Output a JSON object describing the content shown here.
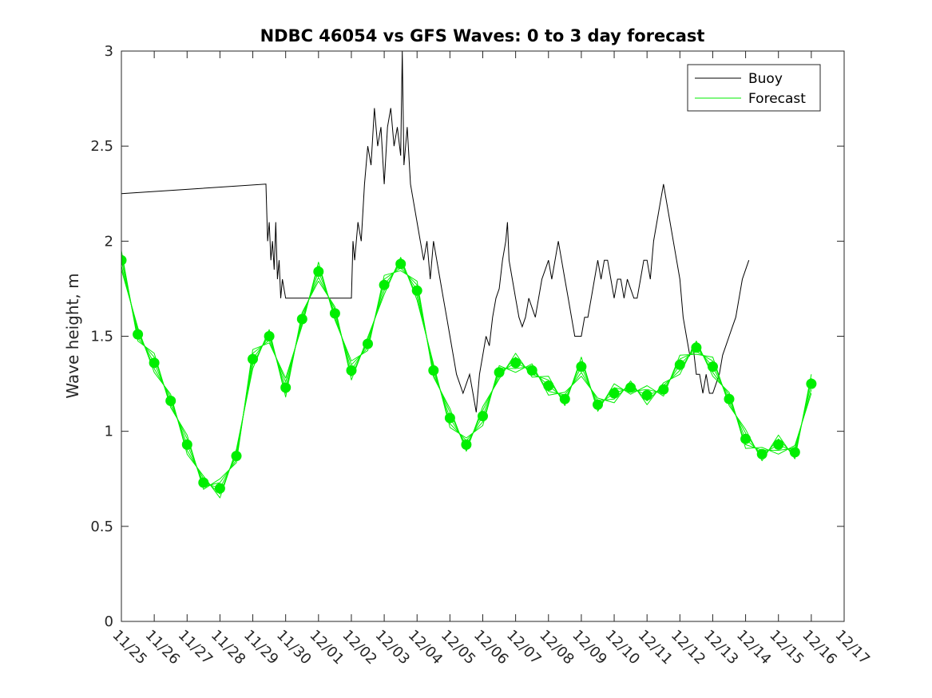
{
  "chart_data": {
    "type": "line",
    "title": "NDBC 46054 vs GFS Waves: 0 to 3 day forecast",
    "xlabel": "",
    "ylabel": "Wave height, m",
    "x_unit": "days since 11/25",
    "xlim": [
      0,
      22
    ],
    "ylim": [
      0,
      3
    ],
    "yticks": [
      0,
      0.5,
      1,
      1.5,
      2,
      2.5,
      3
    ],
    "ytick_labels": [
      "0",
      "0.5",
      "1",
      "1.5",
      "2",
      "2.5",
      "3"
    ],
    "xticks": [
      0,
      1,
      2,
      3,
      4,
      5,
      6,
      7,
      8,
      9,
      10,
      11,
      12,
      13,
      14,
      15,
      16,
      17,
      18,
      19,
      20,
      21,
      22
    ],
    "xtick_labels": [
      "11/25",
      "11/26",
      "11/27",
      "11/28",
      "11/29",
      "11/30",
      "12/01",
      "12/02",
      "12/03",
      "12/04",
      "12/05",
      "12/06",
      "12/07",
      "12/08",
      "12/09",
      "12/10",
      "12/11",
      "12/12",
      "12/13",
      "12/14",
      "12/15",
      "12/16",
      "12/17"
    ],
    "legend": {
      "placement": "top-right",
      "entries": [
        {
          "label": "Buoy",
          "color": "#000000"
        },
        {
          "label": "Forecast",
          "color": "#00ee00"
        }
      ]
    },
    "series": [
      {
        "name": "Buoy",
        "color": "#000000",
        "points": [
          [
            0,
            2.25
          ],
          [
            4.4,
            2.3
          ],
          [
            4.45,
            2.0
          ],
          [
            4.5,
            2.1
          ],
          [
            4.55,
            1.9
          ],
          [
            4.6,
            2.0
          ],
          [
            4.65,
            1.85
          ],
          [
            4.7,
            2.1
          ],
          [
            4.75,
            1.8
          ],
          [
            4.8,
            1.9
          ],
          [
            4.85,
            1.7
          ],
          [
            4.9,
            1.8
          ],
          [
            4.95,
            1.75
          ],
          [
            5.0,
            1.7
          ],
          [
            7.0,
            1.7
          ],
          [
            7.05,
            2.0
          ],
          [
            7.1,
            1.9
          ],
          [
            7.2,
            2.1
          ],
          [
            7.3,
            2.0
          ],
          [
            7.4,
            2.3
          ],
          [
            7.5,
            2.5
          ],
          [
            7.6,
            2.4
          ],
          [
            7.7,
            2.7
          ],
          [
            7.8,
            2.5
          ],
          [
            7.9,
            2.6
          ],
          [
            8.0,
            2.3
          ],
          [
            8.1,
            2.6
          ],
          [
            8.2,
            2.7
          ],
          [
            8.3,
            2.5
          ],
          [
            8.4,
            2.6
          ],
          [
            8.5,
            2.45
          ],
          [
            8.55,
            3.0
          ],
          [
            8.6,
            2.4
          ],
          [
            8.7,
            2.6
          ],
          [
            8.8,
            2.3
          ],
          [
            8.9,
            2.2
          ],
          [
            9.0,
            2.1
          ],
          [
            9.1,
            2.0
          ],
          [
            9.2,
            1.9
          ],
          [
            9.3,
            2.0
          ],
          [
            9.4,
            1.8
          ],
          [
            9.5,
            2.0
          ],
          [
            9.6,
            1.9
          ],
          [
            9.7,
            1.8
          ],
          [
            9.8,
            1.7
          ],
          [
            9.9,
            1.6
          ],
          [
            10.0,
            1.5
          ],
          [
            10.1,
            1.4
          ],
          [
            10.2,
            1.3
          ],
          [
            10.3,
            1.25
          ],
          [
            10.4,
            1.2
          ],
          [
            10.5,
            1.25
          ],
          [
            10.6,
            1.3
          ],
          [
            10.7,
            1.2
          ],
          [
            10.8,
            1.1
          ],
          [
            10.9,
            1.3
          ],
          [
            11.0,
            1.4
          ],
          [
            11.1,
            1.5
          ],
          [
            11.2,
            1.45
          ],
          [
            11.3,
            1.6
          ],
          [
            11.4,
            1.7
          ],
          [
            11.5,
            1.75
          ],
          [
            11.6,
            1.9
          ],
          [
            11.7,
            2.0
          ],
          [
            11.75,
            2.1
          ],
          [
            11.8,
            1.9
          ],
          [
            11.9,
            1.8
          ],
          [
            12.0,
            1.7
          ],
          [
            12.1,
            1.6
          ],
          [
            12.2,
            1.55
          ],
          [
            12.3,
            1.6
          ],
          [
            12.4,
            1.7
          ],
          [
            12.5,
            1.65
          ],
          [
            12.6,
            1.6
          ],
          [
            12.7,
            1.7
          ],
          [
            12.8,
            1.8
          ],
          [
            12.9,
            1.85
          ],
          [
            13.0,
            1.9
          ],
          [
            13.1,
            1.8
          ],
          [
            13.2,
            1.9
          ],
          [
            13.3,
            2.0
          ],
          [
            13.4,
            1.9
          ],
          [
            13.5,
            1.8
          ],
          [
            13.6,
            1.7
          ],
          [
            13.7,
            1.6
          ],
          [
            13.8,
            1.5
          ],
          [
            13.9,
            1.5
          ],
          [
            14.0,
            1.5
          ],
          [
            14.1,
            1.6
          ],
          [
            14.2,
            1.6
          ],
          [
            14.3,
            1.7
          ],
          [
            14.4,
            1.8
          ],
          [
            14.5,
            1.9
          ],
          [
            14.6,
            1.8
          ],
          [
            14.7,
            1.9
          ],
          [
            14.8,
            1.9
          ],
          [
            14.9,
            1.8
          ],
          [
            15.0,
            1.7
          ],
          [
            15.1,
            1.8
          ],
          [
            15.2,
            1.8
          ],
          [
            15.3,
            1.7
          ],
          [
            15.4,
            1.8
          ],
          [
            15.5,
            1.75
          ],
          [
            15.6,
            1.7
          ],
          [
            15.7,
            1.7
          ],
          [
            15.8,
            1.8
          ],
          [
            15.9,
            1.9
          ],
          [
            16.0,
            1.9
          ],
          [
            16.1,
            1.8
          ],
          [
            16.2,
            2.0
          ],
          [
            16.3,
            2.1
          ],
          [
            16.4,
            2.2
          ],
          [
            16.5,
            2.3
          ],
          [
            16.6,
            2.2
          ],
          [
            16.7,
            2.1
          ],
          [
            16.8,
            2.0
          ],
          [
            16.9,
            1.9
          ],
          [
            17.0,
            1.8
          ],
          [
            17.1,
            1.6
          ],
          [
            17.2,
            1.5
          ],
          [
            17.3,
            1.4
          ],
          [
            17.4,
            1.45
          ],
          [
            17.5,
            1.3
          ],
          [
            17.6,
            1.3
          ],
          [
            17.7,
            1.2
          ],
          [
            17.8,
            1.3
          ],
          [
            17.9,
            1.2
          ],
          [
            18.0,
            1.2
          ],
          [
            18.1,
            1.25
          ],
          [
            18.2,
            1.3
          ],
          [
            18.3,
            1.4
          ],
          [
            18.4,
            1.45
          ],
          [
            18.5,
            1.5
          ],
          [
            18.6,
            1.55
          ],
          [
            18.7,
            1.6
          ],
          [
            18.8,
            1.7
          ],
          [
            18.9,
            1.8
          ],
          [
            19.0,
            1.85
          ],
          [
            19.1,
            1.9
          ]
        ]
      },
      {
        "name": "Forecast",
        "color": "#00ee00",
        "markers": [
          [
            0,
            1.9
          ],
          [
            0.5,
            1.51
          ],
          [
            1,
            1.36
          ],
          [
            1.5,
            1.16
          ],
          [
            2,
            0.93
          ],
          [
            2.5,
            0.73
          ],
          [
            3,
            0.7
          ],
          [
            3.5,
            0.87
          ],
          [
            4,
            1.38
          ],
          [
            4.5,
            1.5
          ],
          [
            5,
            1.23
          ],
          [
            5.5,
            1.59
          ],
          [
            6,
            1.84
          ],
          [
            6.5,
            1.62
          ],
          [
            7,
            1.32
          ],
          [
            7.5,
            1.46
          ],
          [
            8,
            1.77
          ],
          [
            8.5,
            1.88
          ],
          [
            9,
            1.74
          ],
          [
            9.5,
            1.32
          ],
          [
            10,
            1.07
          ],
          [
            10.5,
            0.93
          ],
          [
            11,
            1.08
          ],
          [
            11.5,
            1.31
          ],
          [
            12,
            1.36
          ],
          [
            12.5,
            1.32
          ],
          [
            13,
            1.24
          ],
          [
            13.5,
            1.17
          ],
          [
            14,
            1.34
          ],
          [
            14.5,
            1.14
          ],
          [
            15,
            1.2
          ],
          [
            15.5,
            1.23
          ],
          [
            16,
            1.19
          ],
          [
            16.5,
            1.22
          ],
          [
            17,
            1.35
          ],
          [
            17.5,
            1.44
          ],
          [
            18,
            1.34
          ],
          [
            18.5,
            1.17
          ],
          [
            19,
            0.96
          ],
          [
            19.5,
            0.88
          ],
          [
            20,
            0.93
          ],
          [
            20.5,
            0.89
          ],
          [
            21,
            1.25
          ]
        ]
      }
    ]
  }
}
